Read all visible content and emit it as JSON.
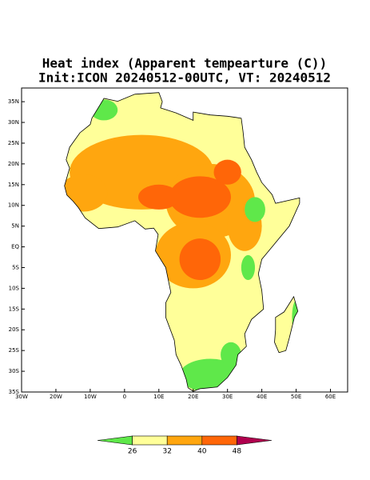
{
  "map": {
    "title": "Heat index (Apparent tempearture (C))",
    "subtitle": "Init:ICON 20240512-00UTC, VT: 20240512",
    "xlim": [
      -30,
      65
    ],
    "ylim": [
      -35,
      38.3
    ],
    "xticks": [
      {
        "value": -30,
        "label": "30W"
      },
      {
        "value": -20,
        "label": "20W"
      },
      {
        "value": -10,
        "label": "10W"
      },
      0,
      {
        "value": 10,
        "label": "10E"
      },
      {
        "value": 20,
        "label": "20E"
      },
      {
        "value": 30,
        "label": "30E"
      },
      {
        "value": 40,
        "label": "40E"
      },
      {
        "value": 50,
        "label": "50E"
      },
      {
        "value": 60,
        "label": "60E"
      }
    ],
    "yticks": [
      {
        "value": 35,
        "label": "35N"
      },
      {
        "value": 30,
        "label": "30N"
      },
      {
        "value": 25,
        "label": "25N"
      },
      {
        "value": 20,
        "label": "20N"
      },
      {
        "value": 15,
        "label": "15N"
      },
      {
        "value": 10,
        "label": "10N"
      },
      {
        "value": 5,
        "label": "5N"
      },
      {
        "value": 0,
        "label": "EQ"
      },
      {
        "value": -5,
        "label": "5S"
      },
      {
        "value": -10,
        "label": "10S"
      },
      {
        "value": -15,
        "label": "15S"
      },
      {
        "value": -20,
        "label": "20S"
      },
      {
        "value": -25,
        "label": "25S"
      },
      {
        "value": -30,
        "label": "30S"
      },
      {
        "value": -35,
        "label": "35S"
      }
    ],
    "colorbar": {
      "levels": [
        26,
        32,
        40,
        48
      ],
      "colors": [
        "#5fe84a",
        "#ffff99",
        "#ffa60f",
        "#ff6608",
        "#b0004e"
      ]
    }
  }
}
